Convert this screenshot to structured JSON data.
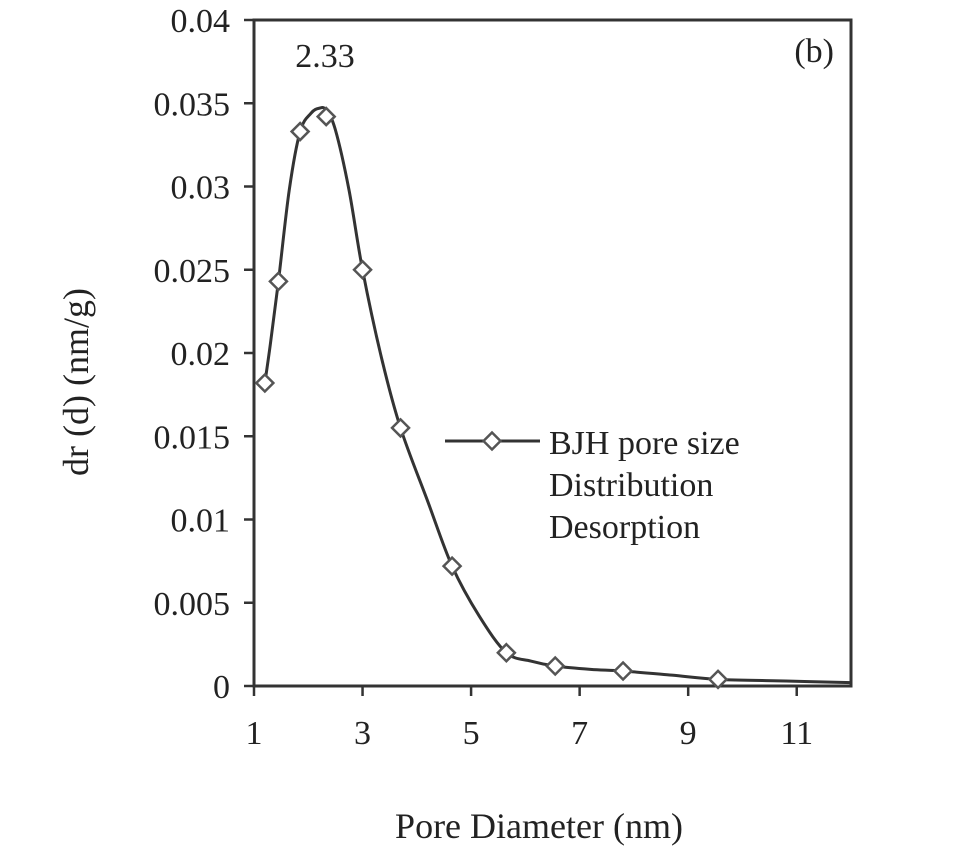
{
  "chart_data": {
    "type": "line",
    "title": "",
    "panel_label": "(b)",
    "xlabel": "Pore Diameter (nm)",
    "ylabel": "dr (d) (nm/g)",
    "xlim": [
      1,
      12
    ],
    "ylim": [
      0,
      0.04
    ],
    "xticks": [
      1,
      3,
      5,
      7,
      9,
      11
    ],
    "yticks": [
      0,
      0.005,
      0.01,
      0.015,
      0.02,
      0.025,
      0.03,
      0.035,
      0.04
    ],
    "ytick_labels": [
      "0",
      "0.005",
      "0.01",
      "0.015",
      "0.02",
      "0.025",
      "0.03",
      "0.035",
      "0.04"
    ],
    "grid": false,
    "legend": {
      "placement": "right-center",
      "lines": [
        "BJH pore size",
        "Distribution",
        "Desorption"
      ]
    },
    "annotation": {
      "text": "2.33",
      "x": 2.33,
      "y": 0.0345
    },
    "series": [
      {
        "name": "BJH pore size Distribution Desorption",
        "marker": "diamond",
        "color": "#333333",
        "x": [
          1.2,
          1.45,
          1.85,
          2.33,
          3.0,
          3.7,
          4.65,
          5.65,
          6.55,
          7.8,
          9.55,
          12.0
        ],
        "y": [
          0.0182,
          0.0243,
          0.0333,
          0.0342,
          0.025,
          0.0155,
          0.0072,
          0.002,
          0.0012,
          0.0009,
          0.0004,
          0.0002
        ]
      }
    ],
    "curve": {
      "x": [
        1.2,
        1.3,
        1.45,
        1.65,
        1.85,
        2.05,
        2.2,
        2.33,
        2.5,
        2.75,
        3.0,
        3.35,
        3.7,
        4.2,
        4.65,
        5.15,
        5.65,
        6.1,
        6.55,
        7.2,
        7.8,
        8.7,
        9.55,
        10.8,
        12.0
      ],
      "y": [
        0.0182,
        0.0205,
        0.0243,
        0.0298,
        0.0333,
        0.0344,
        0.0347,
        0.0346,
        0.0334,
        0.0298,
        0.025,
        0.0197,
        0.0155,
        0.0111,
        0.0072,
        0.0042,
        0.002,
        0.0015,
        0.0012,
        0.001,
        0.0009,
        0.00065,
        0.0004,
        0.0003,
        0.0002
      ]
    }
  }
}
